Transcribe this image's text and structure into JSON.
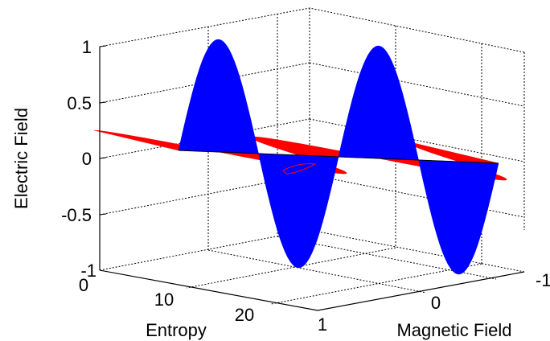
{
  "chart_data": {
    "type": "3d-surface",
    "title": "",
    "xlabel": "Entropy",
    "ylabel": "Magnetic Field",
    "zlabel": "Electric Field",
    "grid": true,
    "view": "3d-box",
    "axes": {
      "z": {
        "range": [
          -1,
          1
        ],
        "ticks": [
          "-1",
          "-0.5",
          "0",
          "0.5",
          "1"
        ]
      },
      "x": {
        "ticks": [
          "0",
          "10",
          "20"
        ]
      },
      "y": {
        "range": [
          -1,
          1
        ],
        "ticks": [
          "1",
          "0",
          "-1"
        ]
      }
    },
    "series": [
      {
        "color": "#0000ff",
        "plane": "entropy-electric",
        "amplitude": 1,
        "periods": 2
      },
      {
        "color": "#ff0000",
        "plane": "entropy-magnetic",
        "amplitude": 1,
        "periods": 2
      }
    ]
  }
}
